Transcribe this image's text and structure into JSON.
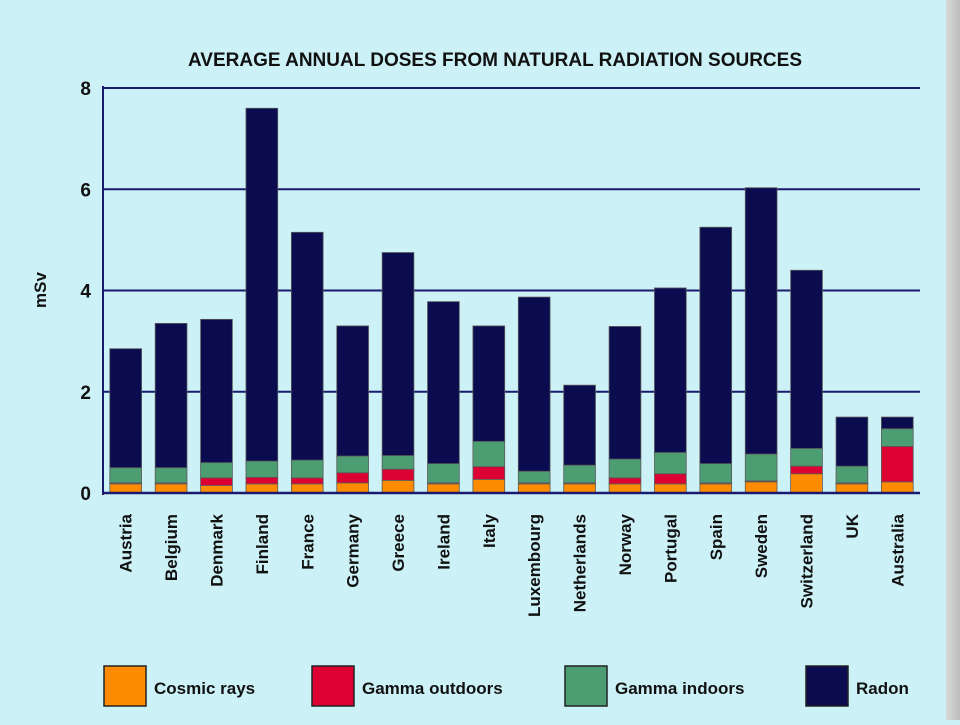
{
  "chart_data": {
    "type": "bar",
    "stacked": true,
    "title": "AVERAGE ANNUAL DOSES FROM NATURAL RADIATION SOURCES",
    "xlabel": "",
    "ylabel": "mSv",
    "ylim": [
      0,
      8
    ],
    "yticks": [
      "0",
      "2",
      "4",
      "6",
      "8"
    ],
    "grid": true,
    "legend_position": "bottom",
    "categories": [
      "Austria",
      "Belgium",
      "Denmark",
      "Finland",
      "France",
      "Germany",
      "Greece",
      "Ireland",
      "Italy",
      "Luxembourg",
      "Netherlands",
      "Norway",
      "Portugal",
      "Spain",
      "Sweden",
      "Switzerland",
      "UK",
      "Australia"
    ],
    "series": [
      {
        "name": "Cosmic rays",
        "color": "#ff8c00",
        "values": [
          0.18,
          0.18,
          0.15,
          0.18,
          0.18,
          0.2,
          0.25,
          0.18,
          0.27,
          0.18,
          0.18,
          0.18,
          0.18,
          0.18,
          0.22,
          0.38,
          0.18,
          0.22
        ]
      },
      {
        "name": "Gamma outdoors",
        "color": "#dd0033",
        "values": [
          0.02,
          0.02,
          0.15,
          0.13,
          0.12,
          0.2,
          0.22,
          0.02,
          0.25,
          0.02,
          0.02,
          0.12,
          0.2,
          0.02,
          0.02,
          0.15,
          0.02,
          0.7
        ]
      },
      {
        "name": "Gamma indoors",
        "color": "#4c9e72",
        "values": [
          0.3,
          0.3,
          0.3,
          0.32,
          0.35,
          0.33,
          0.27,
          0.38,
          0.5,
          0.23,
          0.35,
          0.37,
          0.42,
          0.38,
          0.53,
          0.35,
          0.33,
          0.35
        ]
      },
      {
        "name": "Radon",
        "color": "#0b0b50",
        "values": [
          2.35,
          2.85,
          2.83,
          6.97,
          4.5,
          2.57,
          4.01,
          3.2,
          2.28,
          3.44,
          1.58,
          2.62,
          3.25,
          4.67,
          5.26,
          3.52,
          0.97,
          0.23
        ]
      }
    ]
  }
}
